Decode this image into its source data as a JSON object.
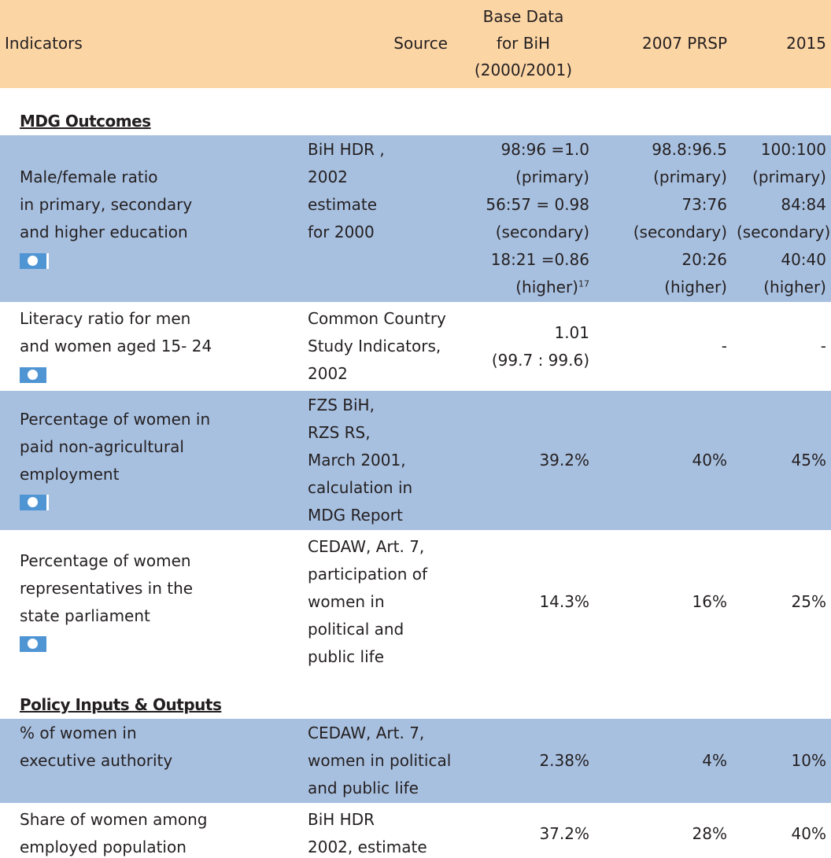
{
  "header": {
    "columns": [
      [
        "Indicators"
      ],
      [
        "Source"
      ],
      [
        "Base Data",
        "for BiH",
        "(2000/2001)"
      ],
      [
        "2007 PRSP"
      ],
      [
        "2015"
      ]
    ]
  },
  "sections": [
    {
      "title": "MDG Outcomes",
      "rows": [
        {
          "shaded": true,
          "icon": true,
          "indicator": [
            "Male/female ratio",
            "in primary, secondary",
            "and higher education"
          ],
          "source": [
            "BiH HDR ,",
            "2002",
            "estimate",
            "for 2000"
          ],
          "base": [
            "98:96 =1.0",
            "(primary)",
            "56:57 = 0.98",
            "(secondary)",
            "18:21 =0.86",
            "(higher)"
          ],
          "base_note": "17",
          "prsp": [
            "98.8:96.5",
            "(primary)",
            "73:76",
            "(secondary)",
            "20:26",
            "(higher)"
          ],
          "target": [
            "100:100",
            "(primary)",
            "84:84",
            "(secondary)",
            "40:40",
            "(higher)"
          ]
        },
        {
          "shaded": false,
          "icon": true,
          "indicator": [
            "Literacy ratio for men",
            "and women aged 15- 24"
          ],
          "source": [
            "Common Country",
            "Study Indicators,",
            "2002"
          ],
          "base": [
            "1.01",
            "(99.7 : 99.6)"
          ],
          "prsp": [
            "-"
          ],
          "target": [
            "-"
          ]
        },
        {
          "shaded": true,
          "icon": true,
          "indicator": [
            "Percentage of women in",
            "paid non-agricultural",
            "employment"
          ],
          "source": [
            "FZS BiH,",
            "RZS RS,",
            "March 2001,",
            "calculation in",
            "MDG Report"
          ],
          "base": [
            "39.2%"
          ],
          "prsp": [
            "40%"
          ],
          "target": [
            "45%"
          ]
        },
        {
          "shaded": false,
          "icon": true,
          "indicator": [
            "Percentage of women",
            "representatives in the",
            "state parliament"
          ],
          "source": [
            "CEDAW, Art. 7,",
            "participation of",
            "women in",
            "political and",
            "public life"
          ],
          "base": [
            "14.3%"
          ],
          "prsp": [
            "16%"
          ],
          "target": [
            "25%"
          ]
        }
      ]
    },
    {
      "title": "Policy Inputs & Outputs",
      "rows": [
        {
          "shaded": true,
          "icon": false,
          "indicator": [
            "% of women in",
            "executive authority",
            ""
          ],
          "source": [
            "CEDAW, Art. 7,",
            " women in political",
            "and public life"
          ],
          "base": [
            "2.38%"
          ],
          "prsp": [
            "4%"
          ],
          "target": [
            "10%"
          ]
        },
        {
          "shaded": false,
          "icon": false,
          "indicator": [
            "Share of women among",
            "employed population"
          ],
          "source": [
            "BiH HDR",
            "2002, estimate"
          ],
          "base": [
            "37.2%"
          ],
          "prsp": [
            "28%"
          ],
          "target": [
            "40%"
          ]
        }
      ]
    }
  ]
}
